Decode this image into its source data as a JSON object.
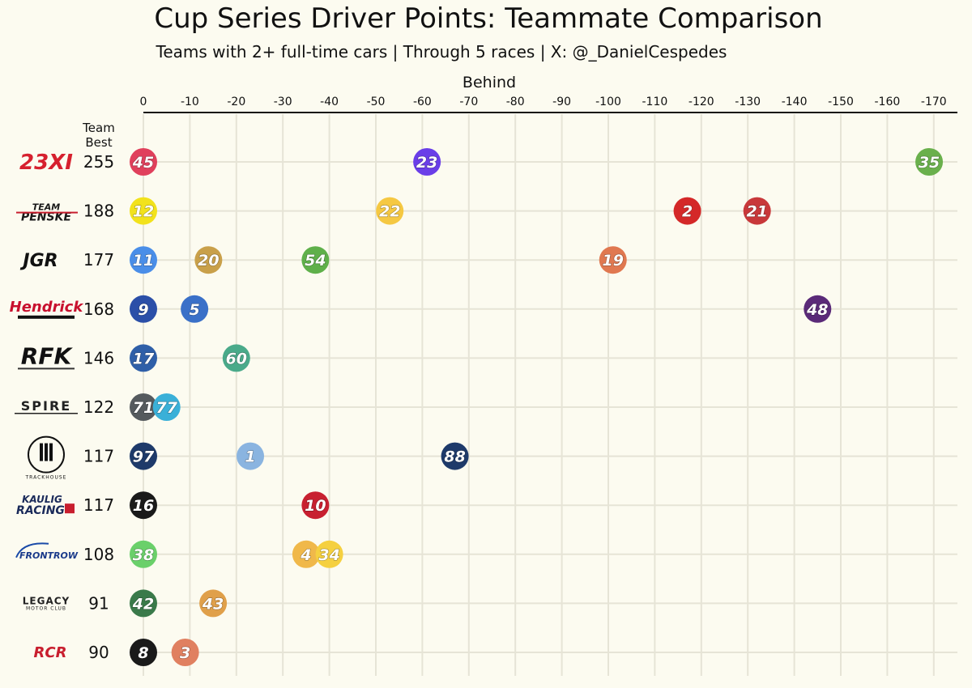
{
  "chart_data": {
    "type": "scatter",
    "title": "Cup Series Driver Points: Teammate Comparison",
    "subtitle": "Teams with 2+ full-time cars | Through 5 races | X: @_DanielCespedes",
    "xlabel": "Behind",
    "team_best_header_line1": "Team",
    "team_best_header_line2": "Best",
    "xlim": [
      0,
      -175
    ],
    "xticks": [
      {
        "value": 0,
        "label": "0"
      },
      {
        "value": -10,
        "label": "-10"
      },
      {
        "value": -20,
        "label": "-20"
      },
      {
        "value": -30,
        "label": "-30"
      },
      {
        "value": -40,
        "label": "-40"
      },
      {
        "value": -50,
        "label": "-50"
      },
      {
        "value": -60,
        "label": "-60"
      },
      {
        "value": -70,
        "label": "-70"
      },
      {
        "value": -80,
        "label": "-80"
      },
      {
        "value": -90,
        "label": "-90"
      },
      {
        "value": -100,
        "label": "-100"
      },
      {
        "value": -110,
        "label": "-110"
      },
      {
        "value": -120,
        "label": "-120"
      },
      {
        "value": -130,
        "label": "-130"
      },
      {
        "value": -140,
        "label": "-140"
      },
      {
        "value": -150,
        "label": "-150"
      },
      {
        "value": -160,
        "label": "-160"
      },
      {
        "value": -170,
        "label": "-170"
      }
    ],
    "teams": [
      {
        "name": "23XI",
        "logo_text": "23XI",
        "logo_color": "#d6202e",
        "best": 255,
        "best_label": "255",
        "cars": [
          {
            "number": "45",
            "behind": 0,
            "color": "#e0405c"
          },
          {
            "number": "23",
            "behind": -61,
            "color": "#6a3ee8"
          },
          {
            "number": "35",
            "behind": -169,
            "color": "#6ab04c"
          }
        ]
      },
      {
        "name": "Team Penske",
        "logo_text": "TEAM PENSKE",
        "logo_color": "#1a1a1a",
        "best": 188,
        "best_label": "188",
        "cars": [
          {
            "number": "12",
            "behind": 0,
            "color": "#f2e21c",
            "text_color": "#111"
          },
          {
            "number": "22",
            "behind": -53,
            "color": "#f5c842",
            "text_color": "#c81e1e"
          },
          {
            "number": "2",
            "behind": -117,
            "color": "#d42828",
            "text_color": "#111"
          },
          {
            "number": "21",
            "behind": -132,
            "color": "#c8383a",
            "text_color": "#f2c84a"
          }
        ]
      },
      {
        "name": "JGR",
        "logo_text": "JGR",
        "logo_color": "#111111",
        "best": 177,
        "best_label": "177",
        "cars": [
          {
            "number": "11",
            "behind": 0,
            "color": "#4a8ee8"
          },
          {
            "number": "20",
            "behind": -14,
            "color": "#c9a04a"
          },
          {
            "number": "54",
            "behind": -37,
            "color": "#5fb04a"
          },
          {
            "number": "19",
            "behind": -101,
            "color": "#e07850"
          }
        ]
      },
      {
        "name": "Hendrick",
        "logo_text": "Hendrick",
        "logo_color": "#c8102e",
        "best": 168,
        "best_label": "168",
        "cars": [
          {
            "number": "9",
            "behind": 0,
            "color": "#2b4fa8"
          },
          {
            "number": "5",
            "behind": -11,
            "color": "#3a70c8"
          },
          {
            "number": "48",
            "behind": -145,
            "color": "#5a2a78"
          }
        ]
      },
      {
        "name": "RFK",
        "logo_text": "RFK",
        "logo_color": "#111111",
        "best": 146,
        "best_label": "146",
        "cars": [
          {
            "number": "17",
            "behind": 0,
            "color": "#2f5fa8",
            "text_color": "#f5a63a"
          },
          {
            "number": "60",
            "behind": -20,
            "color": "#4aaa8a"
          }
        ]
      },
      {
        "name": "Spire",
        "logo_text": "SPIRE",
        "logo_color": "#222222",
        "best": 122,
        "best_label": "122",
        "cars": [
          {
            "number": "71",
            "behind": 0,
            "color": "#555a5e"
          },
          {
            "number": "77",
            "behind": -5,
            "color": "#3ab0d8"
          }
        ]
      },
      {
        "name": "Trackhouse",
        "logo_text": "TRACKHOUSE",
        "logo_color": "#111111",
        "best": 117,
        "best_label": "117",
        "cars": [
          {
            "number": "97",
            "behind": 0,
            "color": "#1e3a6a",
            "text_color": "#4ab0f0"
          },
          {
            "number": "1",
            "behind": -23,
            "color": "#8ab4e0",
            "text_color": "#1e4a9a"
          },
          {
            "number": "88",
            "behind": -67,
            "color": "#1e3a6a"
          }
        ]
      },
      {
        "name": "Kaulig Racing",
        "logo_text": "KAULIG RACING",
        "logo_color": "#1a2a5a",
        "best": 117,
        "best_label": "117",
        "cars": [
          {
            "number": "16",
            "behind": 0,
            "color": "#1a1a1a",
            "text_color": "#5ad04a"
          },
          {
            "number": "10",
            "behind": -37,
            "color": "#c82030"
          }
        ]
      },
      {
        "name": "Front Row",
        "logo_text": "FRONTROW",
        "logo_color": "#1a3a8a",
        "best": 108,
        "best_label": "108",
        "cars": [
          {
            "number": "38",
            "behind": 0,
            "color": "#6ad06a",
            "text_color": "#1a3aa8"
          },
          {
            "number": "4",
            "behind": -35,
            "color": "#f0b84a",
            "text_color": "#1a3aa8"
          },
          {
            "number": "34",
            "behind": -40,
            "color": "#f5d040",
            "text_color": "#1a3aa8"
          }
        ]
      },
      {
        "name": "Legacy Motor Club",
        "logo_text": "LEGACY",
        "logo_subtext": "MOTOR CLUB",
        "logo_color": "#222222",
        "best": 91,
        "best_label": "91",
        "cars": [
          {
            "number": "42",
            "behind": 0,
            "color": "#3a7a4a",
            "text_color": "#c8b86a"
          },
          {
            "number": "43",
            "behind": -15,
            "color": "#e0a04a",
            "text_color": "#3a3a3a"
          }
        ]
      },
      {
        "name": "RCR",
        "logo_text": "RCR",
        "logo_color": "#c81e2e",
        "best": 90,
        "best_label": "90",
        "cars": [
          {
            "number": "8",
            "behind": 0,
            "color": "#1a1a1a"
          },
          {
            "number": "3",
            "behind": -9,
            "color": "#e08060"
          }
        ]
      }
    ]
  }
}
